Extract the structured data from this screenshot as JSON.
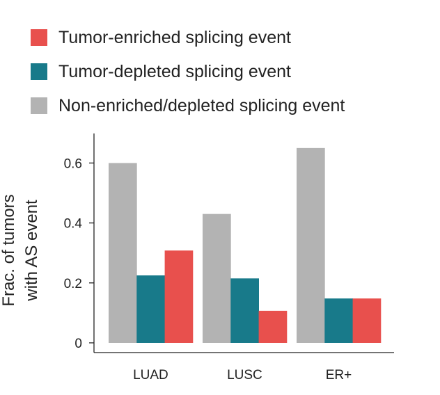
{
  "chart_data": {
    "type": "bar",
    "categories": [
      "LUAD",
      "LUSC",
      "ER+"
    ],
    "series": [
      {
        "name": "Non-enriched/depleted splicing event",
        "color": "#b3b3b3",
        "values": [
          0.6,
          0.43,
          0.65
        ]
      },
      {
        "name": "Tumor-depleted splicing event",
        "color": "#187a8a",
        "values": [
          0.225,
          0.215,
          0.148
        ]
      },
      {
        "name": "Tumor-enriched splicing event",
        "color": "#e8504d",
        "values": [
          0.308,
          0.107,
          0.148
        ]
      }
    ],
    "legend_order": [
      2,
      1,
      0
    ],
    "ylabel": [
      "Frac. of tumors",
      "with AS event"
    ],
    "ylim": [
      0,
      0.68
    ],
    "yticks": [
      0,
      0.2,
      0.4,
      0.6
    ],
    "ytick_labels": [
      "0",
      "0.2",
      "0.4",
      "0.6"
    ],
    "grid": false,
    "legend_position": "top"
  }
}
